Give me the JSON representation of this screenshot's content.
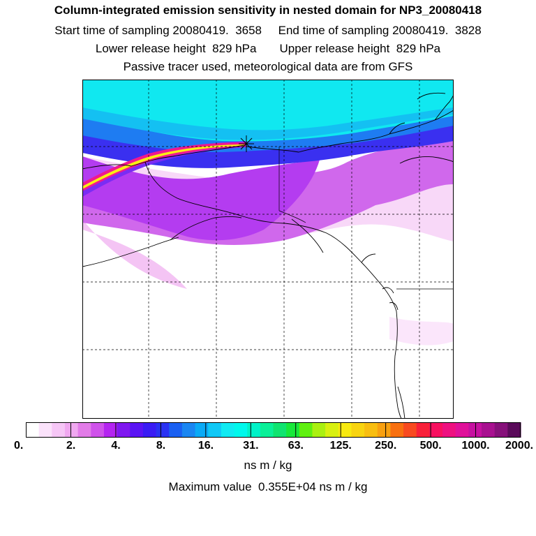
{
  "header": {
    "title": "Column-integrated emission sensitivity in nested domain for NP3_20080418",
    "sampling_line": "Start time of sampling 20080419.  3658     End time of sampling 20080419.  3828",
    "release_line": "Lower release height  829 hPa       Upper release height  829 hPa",
    "tracer_line": "Passive tracer used, meteorological data are from GFS"
  },
  "colorbar": {
    "labels": [
      "0.",
      "2.",
      "4.",
      "8.",
      "16.",
      "31.",
      "63.",
      "125.",
      "250.",
      "500.",
      "1000.",
      "2000."
    ],
    "colors": [
      "#ffffff",
      "#fbe2fb",
      "#f6c6f6",
      "#f0a8f0",
      "#e27ce8",
      "#cf52ea",
      "#b424f0",
      "#7f18f0",
      "#5a14f4",
      "#3a1cf4",
      "#2a32f2",
      "#1a60f2",
      "#1a86f2",
      "#0aaaf6",
      "#10c8f6",
      "#10eaf2",
      "#00f8ec",
      "#00f2c8",
      "#0af098",
      "#10e470",
      "#18e83a",
      "#60f010",
      "#aaf010",
      "#d8f010",
      "#f8ea10",
      "#f8d410",
      "#f8be10",
      "#f8a010",
      "#f87010",
      "#f84a20",
      "#f8203a",
      "#f81060",
      "#ee1080",
      "#e0109a",
      "#c610a0",
      "#a81090",
      "#86107a",
      "#5a0a5a"
    ],
    "units": "ns m / kg"
  },
  "footer": {
    "max_value": "Maximum value  0.355E+04 ns m / kg"
  },
  "map": {
    "region": "North Pacific / Alaska / western North America",
    "release_site_marker": "star",
    "gridlines": "dashed",
    "plume_colors": {
      "background_high": "#10eaee",
      "band_mid": "#2a3cf0",
      "band_violet": "#a040f0",
      "band_light": "#f0b8f0",
      "core_hot": "#f01880",
      "core_yellow": "#f8f010"
    }
  }
}
